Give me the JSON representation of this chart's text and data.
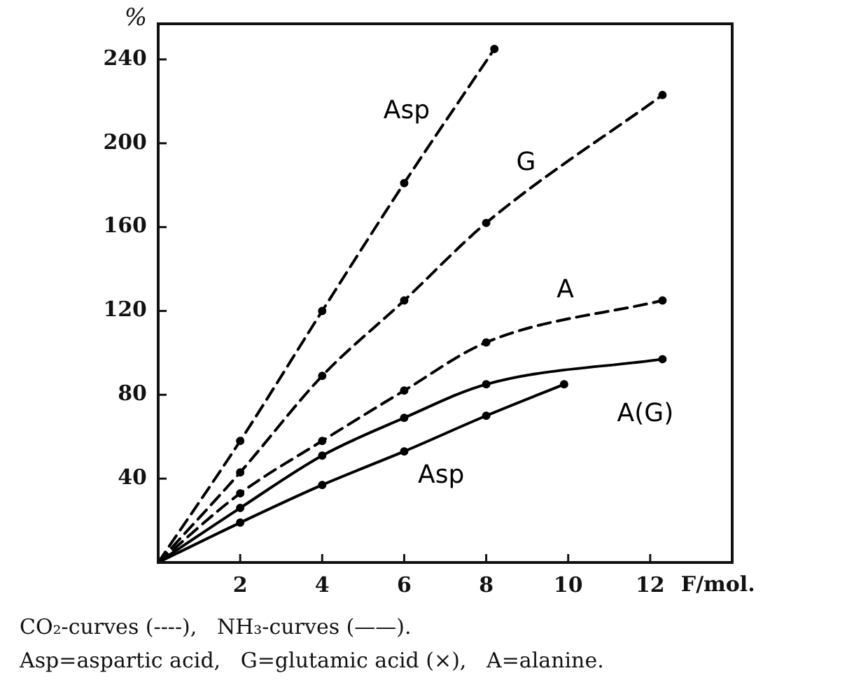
{
  "chart_data": {
    "type": "line",
    "xlabel": "F/mol.",
    "ylabel": "%",
    "xlim": [
      0,
      14
    ],
    "xticks": [
      2,
      4,
      6,
      8,
      10,
      12
    ],
    "ylim": [
      0,
      257
    ],
    "yticks": [
      40,
      80,
      120,
      160,
      200,
      240
    ],
    "grid": false,
    "legend": false,
    "marker": "circle",
    "series": [
      {
        "name": "Asp",
        "color": "#000000",
        "line_style": "dashed",
        "x": [
          0,
          2,
          4,
          6,
          8.2
        ],
        "values": [
          0,
          58,
          120,
          181,
          245
        ]
      },
      {
        "name": "G",
        "color": "#000000",
        "line_style": "dashed",
        "x": [
          0,
          2,
          4,
          6,
          8,
          12.3
        ],
        "values": [
          0,
          43,
          89,
          125,
          162,
          223
        ]
      },
      {
        "name": "A",
        "color": "#000000",
        "line_style": "dashed",
        "x": [
          0,
          2,
          4,
          6,
          8,
          12.3
        ],
        "values": [
          0,
          33,
          58,
          82,
          105,
          125
        ]
      },
      {
        "name": "A(G)",
        "color": "#000000",
        "line_style": "solid",
        "x": [
          0,
          2,
          4,
          6,
          8,
          12.3
        ],
        "values": [
          0,
          26,
          51,
          69,
          85,
          97
        ]
      },
      {
        "name": "Asp",
        "color": "#000000",
        "line_style": "solid",
        "x": [
          0,
          2,
          4,
          6,
          8,
          9.9
        ],
        "values": [
          0,
          19,
          37,
          53,
          70,
          85
        ]
      }
    ],
    "annotations": [
      "CO₂-curves (----),   NH₃-curves (——).",
      "Asp=aspartic acid,   G=glutamic acid (×),   A=alanine."
    ]
  }
}
